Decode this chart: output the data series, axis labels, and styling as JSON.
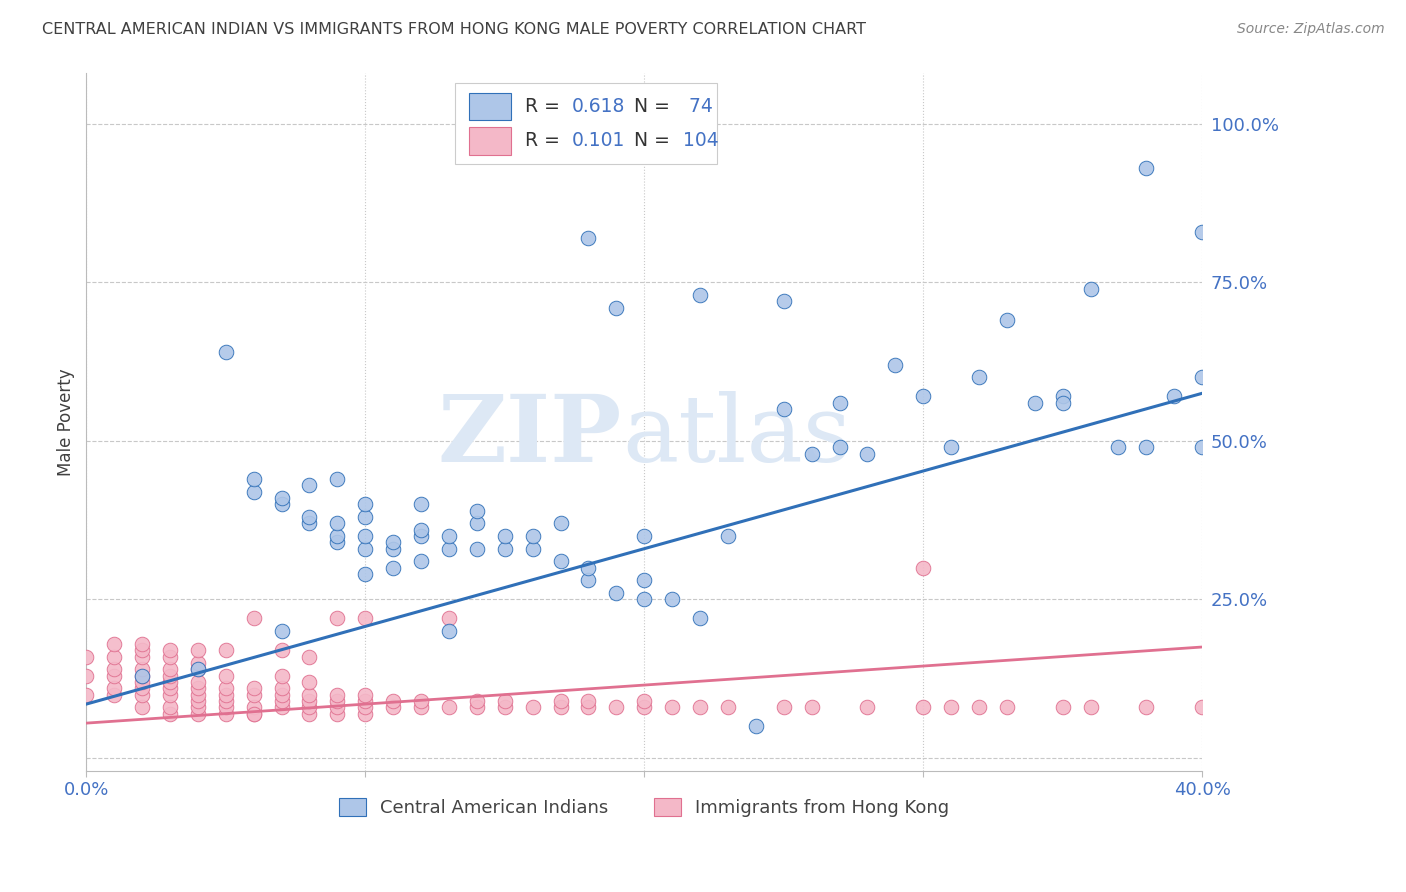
{
  "title": "CENTRAL AMERICAN INDIAN VS IMMIGRANTS FROM HONG KONG MALE POVERTY CORRELATION CHART",
  "source": "Source: ZipAtlas.com",
  "ylabel": "Male Poverty",
  "yticks": [
    0.0,
    0.25,
    0.5,
    0.75,
    1.0
  ],
  "ytick_labels": [
    "",
    "25.0%",
    "50.0%",
    "75.0%",
    "100.0%"
  ],
  "xlim": [
    0.0,
    0.4
  ],
  "ylim": [
    -0.02,
    1.08
  ],
  "watermark_zip": "ZIP",
  "watermark_atlas": "atlas",
  "blue_color": "#aec6e8",
  "pink_color": "#f4b8c8",
  "line_blue_color": "#3070b8",
  "line_pink_color": "#e07090",
  "bg_color": "#ffffff",
  "axis_color": "#4472c4",
  "grid_color": "#c8c8c8",
  "title_color": "#404040",
  "watermark_color": "#dde8f5",
  "blue_line_x0": 0.0,
  "blue_line_x1": 0.4,
  "blue_line_y0": 0.085,
  "blue_line_y1": 0.575,
  "pink_line_x0": 0.0,
  "pink_line_x1": 0.4,
  "pink_line_y0": 0.055,
  "pink_line_y1": 0.175,
  "blue_scatter_x": [
    0.02,
    0.04,
    0.05,
    0.06,
    0.06,
    0.07,
    0.07,
    0.07,
    0.08,
    0.08,
    0.08,
    0.09,
    0.09,
    0.09,
    0.09,
    0.1,
    0.1,
    0.1,
    0.1,
    0.1,
    0.11,
    0.11,
    0.11,
    0.12,
    0.12,
    0.12,
    0.12,
    0.13,
    0.13,
    0.13,
    0.14,
    0.14,
    0.14,
    0.15,
    0.15,
    0.16,
    0.16,
    0.17,
    0.17,
    0.18,
    0.18,
    0.18,
    0.19,
    0.19,
    0.2,
    0.2,
    0.2,
    0.22,
    0.24,
    0.25,
    0.26,
    0.27,
    0.28,
    0.29,
    0.3,
    0.31,
    0.32,
    0.33,
    0.34,
    0.35,
    0.36,
    0.37,
    0.38,
    0.38,
    0.39,
    0.4,
    0.4,
    0.4,
    0.21,
    0.22,
    0.23,
    0.25,
    0.27,
    0.35
  ],
  "blue_scatter_y": [
    0.13,
    0.14,
    0.64,
    0.42,
    0.44,
    0.4,
    0.41,
    0.2,
    0.37,
    0.38,
    0.43,
    0.34,
    0.35,
    0.37,
    0.44,
    0.29,
    0.33,
    0.35,
    0.38,
    0.4,
    0.3,
    0.33,
    0.34,
    0.31,
    0.35,
    0.36,
    0.4,
    0.2,
    0.33,
    0.35,
    0.33,
    0.37,
    0.39,
    0.33,
    0.35,
    0.33,
    0.35,
    0.31,
    0.37,
    0.28,
    0.3,
    0.82,
    0.26,
    0.71,
    0.25,
    0.28,
    0.35,
    0.22,
    0.05,
    0.72,
    0.48,
    0.56,
    0.48,
    0.62,
    0.57,
    0.49,
    0.6,
    0.69,
    0.56,
    0.57,
    0.74,
    0.49,
    0.49,
    0.93,
    0.57,
    0.49,
    0.83,
    0.6,
    0.25,
    0.73,
    0.35,
    0.55,
    0.49,
    0.56
  ],
  "pink_scatter_x": [
    0.0,
    0.0,
    0.0,
    0.01,
    0.01,
    0.01,
    0.01,
    0.01,
    0.01,
    0.02,
    0.02,
    0.02,
    0.02,
    0.02,
    0.02,
    0.02,
    0.02,
    0.02,
    0.03,
    0.03,
    0.03,
    0.03,
    0.03,
    0.03,
    0.03,
    0.03,
    0.03,
    0.04,
    0.04,
    0.04,
    0.04,
    0.04,
    0.04,
    0.04,
    0.04,
    0.04,
    0.05,
    0.05,
    0.05,
    0.05,
    0.05,
    0.05,
    0.05,
    0.06,
    0.06,
    0.06,
    0.06,
    0.06,
    0.06,
    0.07,
    0.07,
    0.07,
    0.07,
    0.07,
    0.07,
    0.08,
    0.08,
    0.08,
    0.08,
    0.08,
    0.08,
    0.09,
    0.09,
    0.09,
    0.09,
    0.09,
    0.1,
    0.1,
    0.1,
    0.1,
    0.1,
    0.11,
    0.11,
    0.12,
    0.12,
    0.13,
    0.13,
    0.14,
    0.14,
    0.15,
    0.15,
    0.16,
    0.17,
    0.17,
    0.18,
    0.18,
    0.19,
    0.2,
    0.2,
    0.21,
    0.22,
    0.23,
    0.25,
    0.26,
    0.28,
    0.3,
    0.3,
    0.31,
    0.32,
    0.33,
    0.35,
    0.36,
    0.38,
    0.4
  ],
  "pink_scatter_y": [
    0.1,
    0.13,
    0.16,
    0.1,
    0.11,
    0.13,
    0.14,
    0.16,
    0.18,
    0.08,
    0.1,
    0.11,
    0.12,
    0.13,
    0.14,
    0.16,
    0.17,
    0.18,
    0.07,
    0.08,
    0.1,
    0.11,
    0.12,
    0.13,
    0.14,
    0.16,
    0.17,
    0.07,
    0.08,
    0.09,
    0.1,
    0.11,
    0.12,
    0.14,
    0.15,
    0.17,
    0.07,
    0.08,
    0.09,
    0.1,
    0.11,
    0.13,
    0.17,
    0.07,
    0.08,
    0.1,
    0.11,
    0.22,
    0.07,
    0.08,
    0.09,
    0.1,
    0.11,
    0.13,
    0.17,
    0.07,
    0.08,
    0.09,
    0.1,
    0.12,
    0.16,
    0.07,
    0.08,
    0.09,
    0.1,
    0.22,
    0.07,
    0.08,
    0.09,
    0.1,
    0.22,
    0.08,
    0.09,
    0.08,
    0.09,
    0.08,
    0.22,
    0.08,
    0.09,
    0.08,
    0.09,
    0.08,
    0.08,
    0.09,
    0.08,
    0.09,
    0.08,
    0.08,
    0.09,
    0.08,
    0.08,
    0.08,
    0.08,
    0.08,
    0.08,
    0.08,
    0.3,
    0.08,
    0.08,
    0.08,
    0.08,
    0.08,
    0.08,
    0.08
  ]
}
